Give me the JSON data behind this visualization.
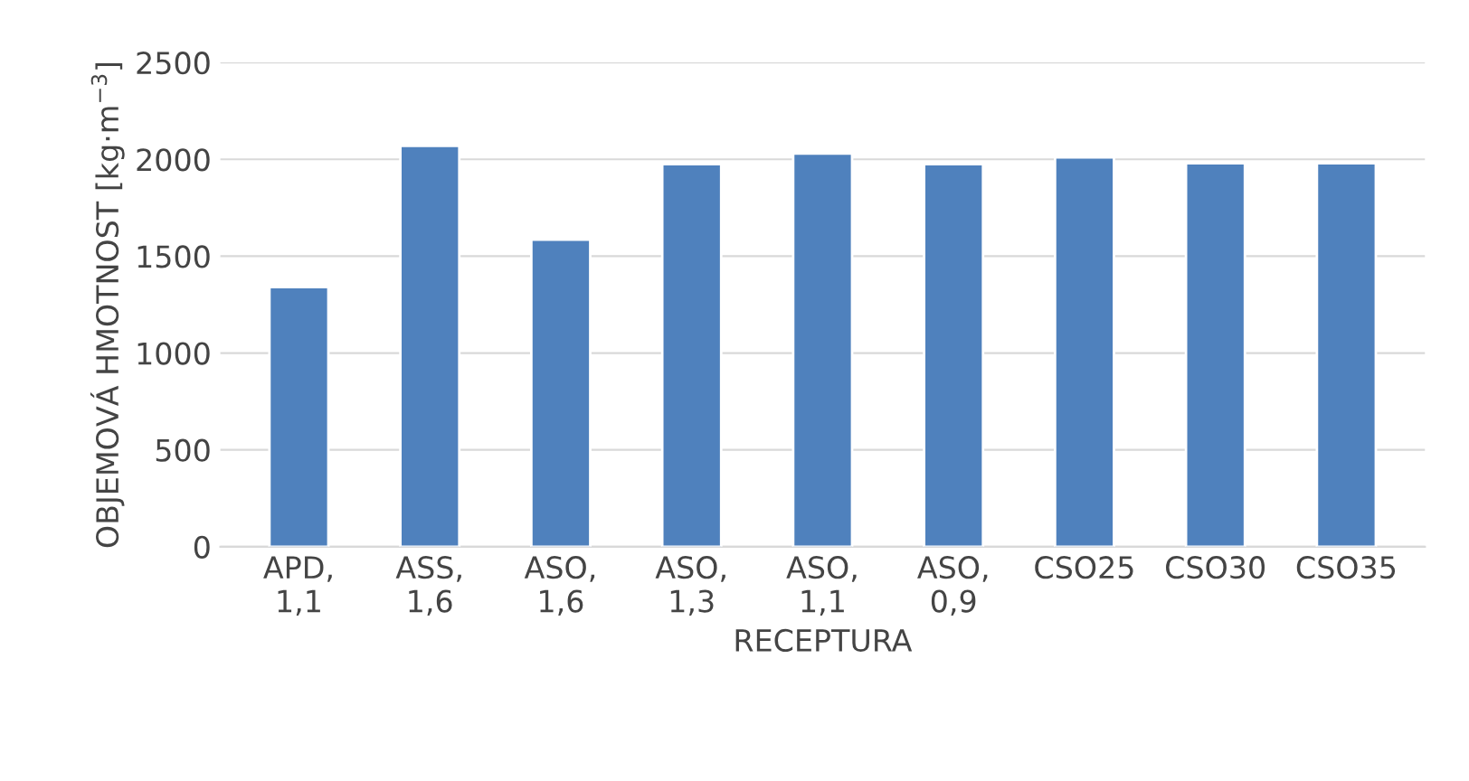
{
  "chart_data": {
    "type": "bar",
    "xlabel": "RECEPTURA",
    "ylabel": "OBJEMOVÁ HMOTNOST [kg·m$^{−3}$]",
    "categories": [
      "APD,\n1,1",
      "ASS,\n1,6",
      "ASO,\n1,6",
      "ASO,\n1,3",
      "ASO,\n1,1",
      "ASO,\n0,9",
      "CSO25",
      "CSO30",
      "CSO35"
    ],
    "values": [
      1340,
      2070,
      1585,
      1975,
      2030,
      1975,
      2010,
      1980,
      1980
    ],
    "color": "#4f81bd",
    "ylim": [
      0,
      2500
    ],
    "yticks": [
      0,
      500,
      1000,
      1500,
      2000,
      2500
    ],
    "grid": "y"
  }
}
